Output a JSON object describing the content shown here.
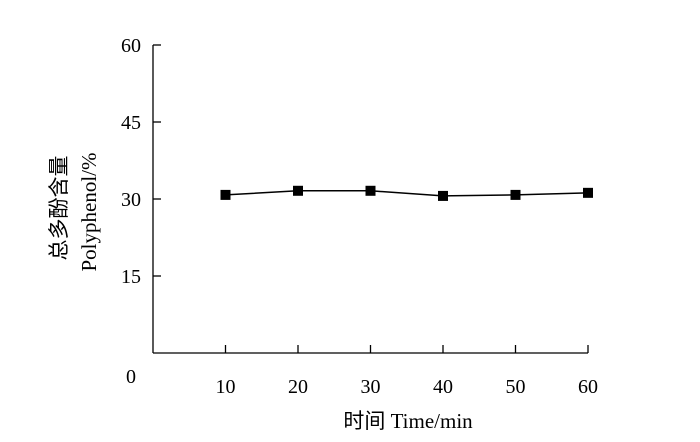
{
  "chart_data": {
    "type": "line",
    "title": "",
    "xlabel": "时间 Time/min",
    "ylabel_cn": "总多酚含量",
    "ylabel_en": "Polyphenol/%",
    "x": [
      10,
      20,
      30,
      40,
      50,
      60
    ],
    "x_ticks": [
      "10",
      "20",
      "30",
      "40",
      "50",
      "60"
    ],
    "y_ticks": [
      "15",
      "30",
      "45",
      "60"
    ],
    "origin_label": "0",
    "xlim": [
      0,
      60
    ],
    "ylim": [
      0,
      60
    ],
    "grid": false,
    "series": [
      {
        "values": [
          30.8,
          31.6,
          31.6,
          30.6,
          30.8,
          31.2
        ],
        "marker": "square",
        "color": "#000000"
      }
    ]
  }
}
